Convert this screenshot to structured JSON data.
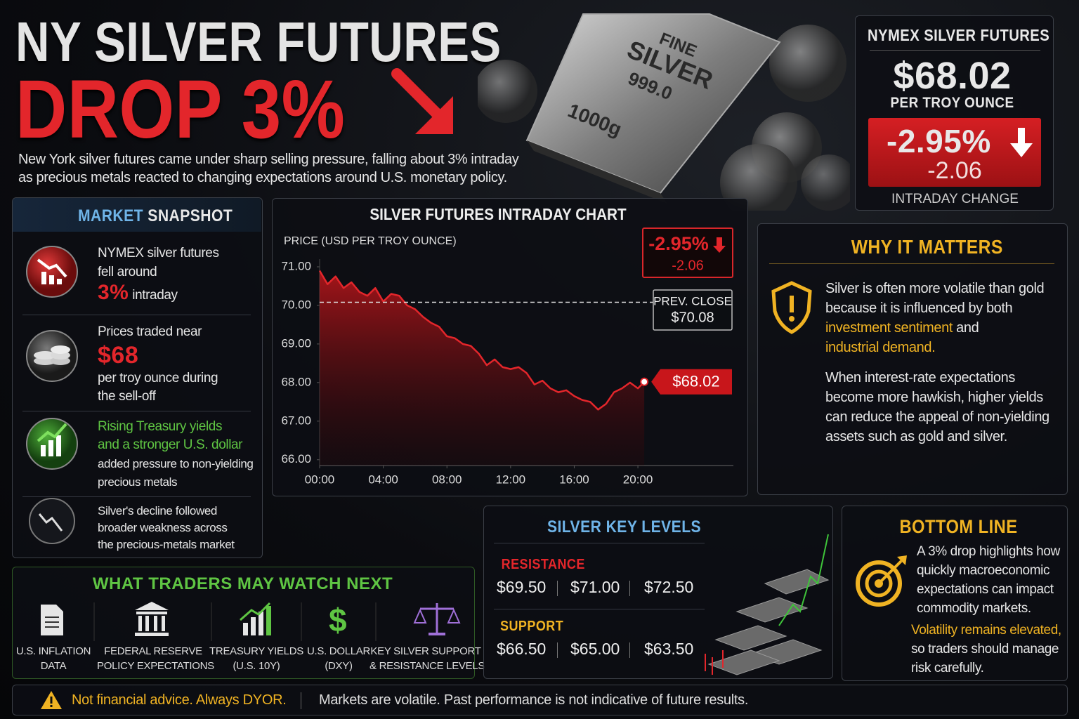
{
  "header": {
    "title_line1": "NY SILVER FUTURES",
    "title_line2": "DROP 3%",
    "description_line1": "New York silver futures came under sharp selling pressure, falling about 3% intraday",
    "description_line2": "as precious metals reacted to changing expectations around U.S. monetary policy."
  },
  "hero_image": {
    "stamp": [
      "FINE",
      "SILVER",
      "999.0",
      "1000g"
    ]
  },
  "quote_card": {
    "title": "NYMEX SILVER FUTURES",
    "price": "$68.02",
    "unit": "PER TROY OUNCE",
    "change_pct": "-2.95%",
    "change_abs": "-2.06",
    "caption": "INTRADAY CHANGE"
  },
  "market_snapshot": {
    "title_a": "MARKET",
    "title_b": "SNAPSHOT",
    "item1": {
      "line1": "NYMEX silver futures",
      "line2": "fell around",
      "highlight": "3%",
      "tail": "intraday"
    },
    "item2": {
      "line1": "Prices traded near",
      "highlight": "$68",
      "line2": "per troy ounce during",
      "line3": "the sell-off"
    },
    "item3": {
      "green1": "Rising Treasury yields",
      "green2": "and a stronger U.S. dollar",
      "line1": "added pressure to non-yielding",
      "line2": "precious metals"
    },
    "item4": {
      "line1": "Silver's decline followed",
      "line2": "broader weakness across",
      "line3": "the precious-metals market"
    }
  },
  "chart_data": {
    "type": "line",
    "title": "SILVER FUTURES INTRADAY CHART",
    "y_label": "PRICE (USD PER TROY OUNCE)",
    "x": [
      0,
      0.5,
      1,
      1.5,
      2,
      2.5,
      3,
      3.5,
      4,
      4.5,
      5,
      5.5,
      6,
      6.5,
      7,
      7.5,
      8,
      8.5,
      9,
      9.5,
      10,
      10.5,
      11,
      11.5,
      12,
      12.5,
      13,
      13.5,
      14,
      14.5,
      15,
      15.5,
      16,
      16.5,
      17,
      17.5,
      18,
      18.5,
      19,
      19.5,
      20,
      20.4
    ],
    "values": [
      70.9,
      70.55,
      70.75,
      70.45,
      70.6,
      70.35,
      70.25,
      70.45,
      70.1,
      70.3,
      70.25,
      70.0,
      69.9,
      69.7,
      69.55,
      69.45,
      69.2,
      69.15,
      69.0,
      68.95,
      68.75,
      68.45,
      68.6,
      68.4,
      68.35,
      68.4,
      68.25,
      67.95,
      68.05,
      67.85,
      67.75,
      67.8,
      67.65,
      67.55,
      67.5,
      67.3,
      67.45,
      67.75,
      67.85,
      68.0,
      67.85,
      68.02
    ],
    "color": "#e3262b",
    "xlim": [
      0,
      26
    ],
    "ylim": [
      65.85,
      71.2
    ],
    "xticks": [
      {
        "value": 0,
        "label": "00:00"
      },
      {
        "value": 4,
        "label": "04:00"
      },
      {
        "value": 8,
        "label": "08:00"
      },
      {
        "value": 12,
        "label": "12:00"
      },
      {
        "value": 16,
        "label": "16:00"
      },
      {
        "value": 20,
        "label": "20:00"
      }
    ],
    "yticks": [
      {
        "value": 66,
        "label": "66.00"
      },
      {
        "value": 67,
        "label": "67.00"
      },
      {
        "value": 68,
        "label": "68.00"
      },
      {
        "value": 69,
        "label": "69.00"
      },
      {
        "value": 70,
        "label": "70.00"
      },
      {
        "value": 71,
        "label": "71.00"
      }
    ],
    "change_pct": "-2.95%",
    "change_abs": "-2.06",
    "prev_close_label": "PREV. CLOSE",
    "prev_close": {
      "value": 70.08,
      "label": "$70.08"
    },
    "last_price": {
      "value": 68.02,
      "label": "$68.02"
    },
    "grid": false
  },
  "why_it_matters": {
    "title": "WHY IT MATTERS",
    "p1_line1": "Silver is often more volatile than gold",
    "p1_line2": "because it is influenced by both",
    "p1_gold1": "investment sentiment",
    "p1_and": "and",
    "p1_gold2": "industrial demand.",
    "p2": [
      "When interest-rate expectations",
      "become more hawkish, higher yields",
      "can reduce the appeal of non-yielding",
      "assets such as gold and silver."
    ]
  },
  "watch_next": {
    "title": "WHAT TRADERS MAY WATCH NEXT",
    "dollar_icon": "$",
    "items": [
      [
        "U.S. INFLATION",
        "DATA"
      ],
      [
        "FEDERAL RESERVE",
        "POLICY EXPECTATIONS"
      ],
      [
        "TREASURY YIELDS",
        "(U.S. 10Y)"
      ],
      [
        "U.S. DOLLAR",
        "(DXY)"
      ],
      [
        "KEY SILVER SUPPORT",
        "& RESISTANCE LEVELS"
      ]
    ]
  },
  "key_levels": {
    "title": "SILVER KEY LEVELS",
    "resistance_label": "RESISTANCE",
    "resistance": [
      "$69.50",
      "$71.00",
      "$72.50"
    ],
    "support_label": "SUPPORT",
    "support": [
      "$66.50",
      "$65.00",
      "$63.50"
    ]
  },
  "bottom_line": {
    "title": "BOTTOM LINE",
    "lines": [
      "A 3% drop highlights how",
      "quickly macroeconomic",
      "expectations can impact",
      "commodity markets."
    ],
    "gold": "Volatility remains elevated,",
    "tail": [
      "so traders should manage",
      "risk carefully."
    ]
  },
  "footer": {
    "warning": "Not financial advice. Always DYOR.",
    "note": "Markets are volatile. Past performance is not indicative of future results."
  }
}
